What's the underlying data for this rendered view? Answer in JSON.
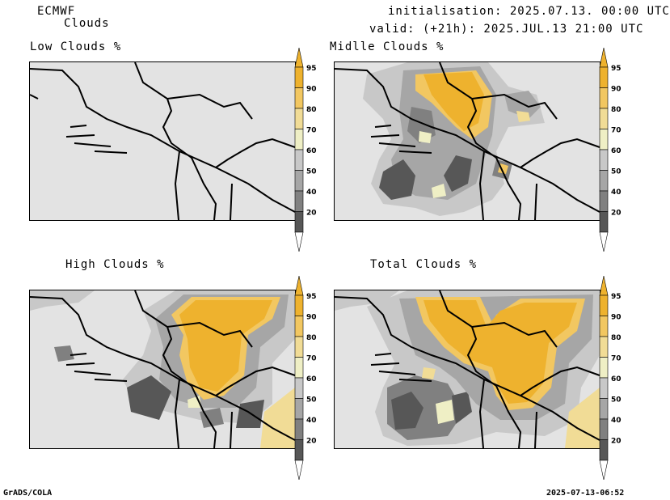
{
  "header": {
    "model": "ECMWF",
    "product": "Clouds",
    "init_line": "initialisation: 2025.07.13. 00:00 UTC",
    "valid_line": "valid: (+21h): 2025.JUL.13 21:00 UTC"
  },
  "panels": [
    {
      "title": "Low Clouds %"
    },
    {
      "title": "Midlle Clouds %"
    },
    {
      "title": "High Clouds %"
    },
    {
      "title": "Total Clouds %"
    }
  ],
  "colorbar": {
    "labels": [
      "95",
      "90",
      "80",
      "70",
      "60",
      "50",
      "40",
      "20"
    ],
    "colors": {
      "c95": "#eeb22e",
      "c90": "#f2c761",
      "c80": "#f1dc96",
      "c70": "#efefc5",
      "c60": "#c8c8c8",
      "c50": "#a6a6a6",
      "c40": "#808080",
      "c20": "#575757",
      "bg": "#e3e3e3"
    }
  },
  "footer": {
    "left": "GrADS/COLA",
    "right": "2025-07-13-06:52"
  }
}
